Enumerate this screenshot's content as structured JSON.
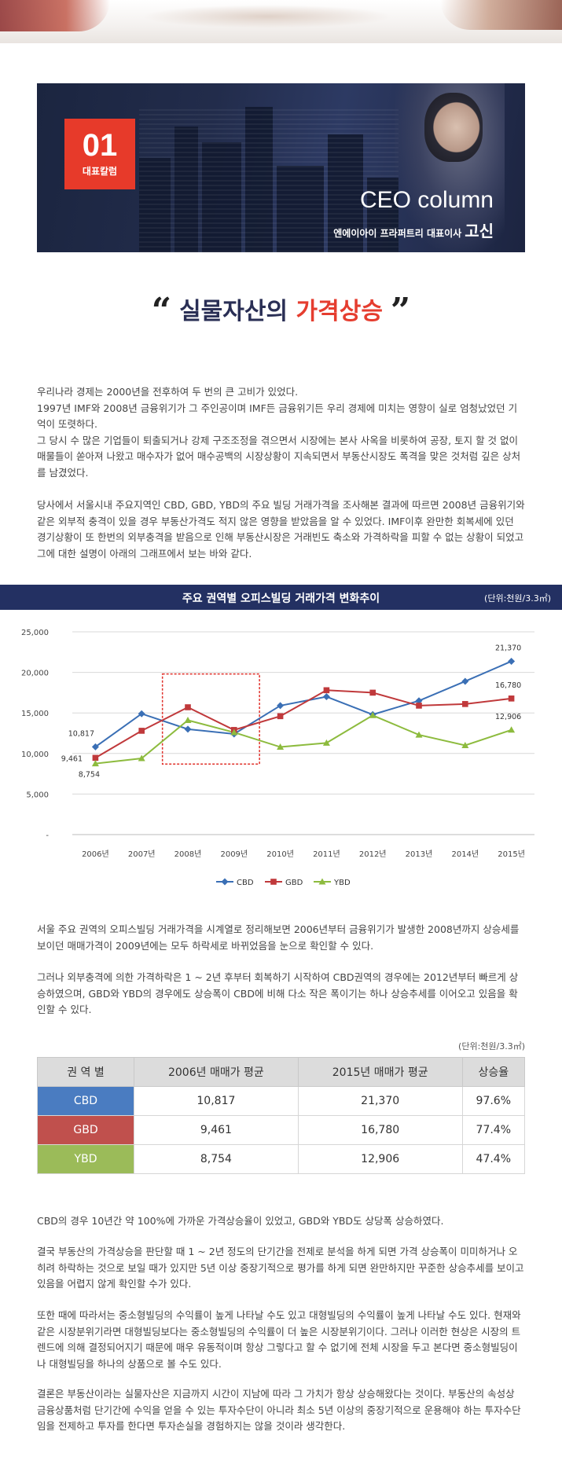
{
  "banner": {
    "badge_number": "01",
    "badge_label": "대표칼럼",
    "title": "CEO column",
    "subtitle": "엔에이아이 프라퍼트리 대표이사",
    "name": "고신"
  },
  "headline": {
    "open_quote": "“",
    "part1": "실물자산의",
    "part2": "가격상승",
    "close_quote": "”"
  },
  "paragraphs": {
    "p1": "우리나라 경제는 2000년을 전후하여 두 번의 큰 고비가 있었다.\n1997년 IMF와 2008년 금융위기가 그 주인공이며 IMF든 금융위기든 우리 경제에 미치는 영향이 실로 엄청났었던 기억이 또렷하다.\n그 당시 수 많은 기업들이 퇴출되거나 강제 구조조정을 겪으면서 시장에는 본사 사옥을 비롯하여 공장, 토지 할 것 없이 매물들이 쏟아져 나왔고 매수자가 없어 매수공백의 시장상황이 지속되면서 부동산시장도 폭격을 맞은 것처럼 깊은 상처를 남겼었다.",
    "p2": "당사에서 서울시내 주요지역인 CBD, GBD, YBD의 주요 빌딩 거래가격을 조사해본 결과에 따르면 2008년 금융위기와 같은 외부적 충격이 있을 경우 부동산가격도 적지 않은 영향을 받았음을 알 수 있었다. IMF이후 완만한 회복세에 있던 경기상황이 또 한번의 외부충격을 받음으로 인해 부동산시장은 거래빈도 축소와 가격하락을 피할 수 없는 상황이 되었고 그에 대한 설명이 아래의 그래프에서 보는 바와 같다.",
    "p3": "서울 주요 권역의 오피스빌딩 거래가격을 시계열로 정리해보면 2006년부터 금융위기가 발생한 2008년까지 상승세를 보이던 매매가격이 2009년에는 모두 하락세로 바뀌었음을 눈으로 확인할 수 있다.",
    "p4": "그러나 외부충격에 의한 가격하락은 1 ~ 2년 후부터 회복하기 시작하여 CBD권역의 경우에는 2012년부터 빠르게 상승하였으며, GBD와 YBD의 경우에도 상승폭이 CBD에 비해 다소 작은 폭이기는 하나 상승추세를 이어오고 있음을 확인할 수 있다.",
    "p5": "CBD의 경우 10년간 약 100%에 가까운 가격상승율이 있었고, GBD와 YBD도 상당폭 상승하였다.",
    "p6": "결국 부동산의 가격상승을 판단할 때 1 ~ 2년 정도의 단기간을 전제로 분석을 하게 되면 가격 상승폭이 미미하거나 오히려 하락하는 것으로 보일 때가 있지만 5년 이상 중장기적으로 평가를 하게 되면 완만하지만 꾸준한 상승추세를 보이고 있음을 어렵지 않게 확인할 수가 있다.",
    "p7": "또한 때에 따라서는 중소형빌딩의 수익률이 높게 나타날 수도 있고 대형빌딩의 수익률이 높게 나타날 수도 있다. 현재와 같은 시장분위기라면 대형빌딩보다는 중소형빌딩의 수익률이 더 높은 시장분위기이다. 그러나 이러한 현상은 시장의 트렌드에 의해 결정되어지기 때문에 매우 유동적이며 항상 그렇다고 할 수 없기에 전체 시장을 두고 본다면 중소형빌딩이나 대형빌딩을 하나의 상품으로 볼 수도 있다.",
    "p8": "결론은 부동산이라는 실물자산은 지금까지 시간이 지남에 따라 그 가치가 항상 상승해왔다는 것이다. 부동산의 속성상 금융상품처럼 단기간에 수익을 얻을 수 있는 투자수단이 아니라 최소 5년 이상의 중장기적으로 운용해야 하는 투자수단임을 전제하고 투자를 한다면 투자손실을 경험하지는 않을 것이라 생각한다."
  },
  "chart_header": {
    "title": "주요 권역별 오피스빌딩 거래가격 변화추이",
    "unit": "(단위:천원/3.3㎡)"
  },
  "chart_data": {
    "type": "line",
    "title": "주요 권역별 오피스빌딩 거래가격 변화추이",
    "categories": [
      "2006년",
      "2007년",
      "2008년",
      "2009년",
      "2010년",
      "2011년",
      "2012년",
      "2013년",
      "2014년",
      "2015년"
    ],
    "series": [
      {
        "name": "CBD",
        "color": "#3a6fb5",
        "marker": "diamond",
        "values": [
          10817,
          14900,
          13000,
          12400,
          15900,
          17000,
          14800,
          16500,
          18900,
          21370
        ]
      },
      {
        "name": "GBD",
        "color": "#c0393b",
        "marker": "square",
        "values": [
          9461,
          12800,
          15700,
          12900,
          14600,
          17800,
          17500,
          15900,
          16100,
          16780
        ]
      },
      {
        "name": "YBD",
        "color": "#8dbb3e",
        "marker": "triangle",
        "values": [
          8754,
          9400,
          14100,
          12600,
          10800,
          11300,
          14700,
          12300,
          11000,
          12906
        ]
      }
    ],
    "data_labels": [
      {
        "series": "CBD",
        "index": 0,
        "text": "10,817"
      },
      {
        "series": "GBD",
        "index": 0,
        "text": "9,461"
      },
      {
        "series": "YBD",
        "index": 0,
        "text": "8,754"
      },
      {
        "series": "CBD",
        "index": 9,
        "text": "21,370"
      },
      {
        "series": "GBD",
        "index": 9,
        "text": "16,780"
      },
      {
        "series": "YBD",
        "index": 9,
        "text": "12,906"
      }
    ],
    "y_ticks": [
      0,
      5000,
      10000,
      15000,
      20000,
      25000
    ],
    "y_tick_labels": [
      "-",
      "5,000",
      "10,000",
      "15,000",
      "20,000",
      "25,000"
    ],
    "ylim": [
      0,
      25000
    ],
    "highlight_range": {
      "from": "2008년",
      "to": "2009년",
      "y_from": 8700,
      "y_to": 19800
    },
    "grid": true,
    "legend_position": "bottom"
  },
  "table": {
    "unit": "(단위:천원/3.3㎡)",
    "headers": [
      "권 역 별",
      "2006년 매매가 평균",
      "2015년 매매가 평균",
      "상승율"
    ],
    "rows": [
      {
        "region": "CBD",
        "v2006": "10,817",
        "v2015": "21,370",
        "rate": "97.6%",
        "color": "#4a7cc1"
      },
      {
        "region": "GBD",
        "v2006": "9,461",
        "v2015": "16,780",
        "rate": "77.4%",
        "color": "#c0504d"
      },
      {
        "region": "YBD",
        "v2006": "8,754",
        "v2015": "12,906",
        "rate": "47.4%",
        "color": "#9bbb59"
      }
    ]
  }
}
